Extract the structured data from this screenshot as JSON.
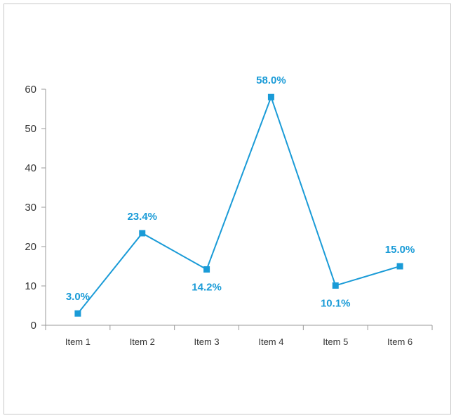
{
  "chart_data": {
    "type": "line",
    "categories": [
      "Item 1",
      "Item 2",
      "Item 3",
      "Item 4",
      "Item 5",
      "Item 6"
    ],
    "series": [
      {
        "values": [
          3.0,
          23.4,
          14.2,
          58.0,
          10.1,
          15.0
        ]
      }
    ],
    "data_labels": [
      "3.0%",
      "23.4%",
      "14.2%",
      "58.0%",
      "10.1%",
      "15.0%"
    ],
    "data_label_positions": [
      "above",
      "above",
      "below",
      "above",
      "below",
      "above"
    ],
    "yticks": [
      "0",
      "10",
      "20",
      "30",
      "40",
      "50",
      "60"
    ],
    "ylim": [
      0,
      60
    ],
    "grid": false,
    "legend": "none",
    "marker": "square",
    "colors": {
      "series": "#1a9bd7",
      "axis": "#999999",
      "text": "#333333"
    }
  }
}
